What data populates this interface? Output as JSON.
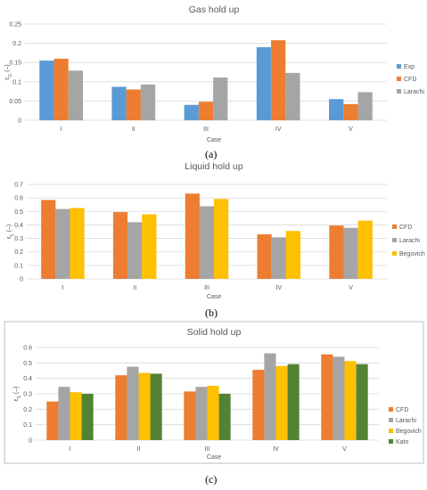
{
  "colors": {
    "Exp": "#5B9BD5",
    "CFD": "#ED7D31",
    "Larachi": "#A5A5A5",
    "Begovich": "#FFC000",
    "Kato": "#548235",
    "grid": "#D9D9D9",
    "axis_text": "#595959",
    "frame": "#BFBFBF"
  },
  "panel_labels": [
    "(a)",
    "(b)",
    "(c)"
  ],
  "chart_data": [
    {
      "type": "bar",
      "title": "Gas hold up",
      "xlabel": "Case",
      "ylabel": "εG (–)",
      "ylabel_main": "ε",
      "ylabel_sub": "G",
      "ylabel_suffix": " (–)",
      "categories": [
        "I",
        "II",
        "III",
        "IV",
        "V"
      ],
      "ylim": [
        0,
        0.25
      ],
      "yticks": [
        0,
        0.05,
        0.1,
        0.15,
        0.2,
        0.25
      ],
      "ytick_labels": [
        "0",
        "0.05",
        "0.1",
        "0.15",
        "0.2",
        "0.25"
      ],
      "grid": true,
      "legend": "right",
      "framed": false,
      "show_xlabel": true,
      "series": [
        {
          "name": "Exp",
          "values": [
            0.155,
            0.087,
            0.04,
            0.19,
            0.055
          ]
        },
        {
          "name": "CFD",
          "values": [
            0.16,
            0.08,
            0.048,
            0.208,
            0.042
          ]
        },
        {
          "name": "Larachi",
          "values": [
            0.129,
            0.093,
            0.111,
            0.123,
            0.073
          ]
        }
      ]
    },
    {
      "type": "bar",
      "title": "Liquid hold up",
      "xlabel": "Case",
      "ylabel": "εL (–)",
      "ylabel_main": "ε",
      "ylabel_sub": "L",
      "ylabel_suffix": " (–)",
      "categories": [
        "I",
        "II",
        "III",
        "IV",
        "V"
      ],
      "ylim": [
        0,
        0.7
      ],
      "yticks": [
        0,
        0.1,
        0.2,
        0.3,
        0.4,
        0.5,
        0.6,
        0.7
      ],
      "ytick_labels": [
        "0",
        "0.1",
        "0.2",
        "0.3",
        "0.4",
        "0.5",
        "0.6",
        "0.7"
      ],
      "grid": true,
      "legend": "right",
      "framed": false,
      "show_xlabel": true,
      "series": [
        {
          "name": "CFD",
          "values": [
            0.585,
            0.495,
            0.632,
            0.33,
            0.395
          ]
        },
        {
          "name": "Larachi",
          "values": [
            0.518,
            0.42,
            0.538,
            0.308,
            0.378
          ]
        },
        {
          "name": "Begovich",
          "values": [
            0.525,
            0.478,
            0.592,
            0.355,
            0.432
          ]
        }
      ]
    },
    {
      "type": "bar",
      "title": "Solid hold up",
      "xlabel": "Case",
      "ylabel": "εS (–)",
      "ylabel_main": "ε",
      "ylabel_sub": "S",
      "ylabel_suffix": " (–)",
      "categories": [
        "I",
        "II",
        "III",
        "IV",
        "V"
      ],
      "ylim": [
        0,
        0.6
      ],
      "yticks": [
        0,
        0.1,
        0.2,
        0.3,
        0.4,
        0.5,
        0.6
      ],
      "ytick_labels": [
        "0",
        "0.1",
        "0.2",
        "0.3",
        "0.4",
        "0.5",
        "0.6"
      ],
      "grid": true,
      "legend": "right",
      "framed": true,
      "show_xlabel": true,
      "series": [
        {
          "name": "CFD",
          "values": [
            0.25,
            0.42,
            0.315,
            0.455,
            0.555
          ]
        },
        {
          "name": "Larachi",
          "values": [
            0.345,
            0.475,
            0.345,
            0.562,
            0.54
          ]
        },
        {
          "name": "Begovich",
          "values": [
            0.31,
            0.435,
            0.352,
            0.48,
            0.512
          ]
        },
        {
          "name": "Kato",
          "values": [
            0.3,
            0.43,
            0.3,
            0.492,
            0.492
          ]
        }
      ]
    }
  ]
}
